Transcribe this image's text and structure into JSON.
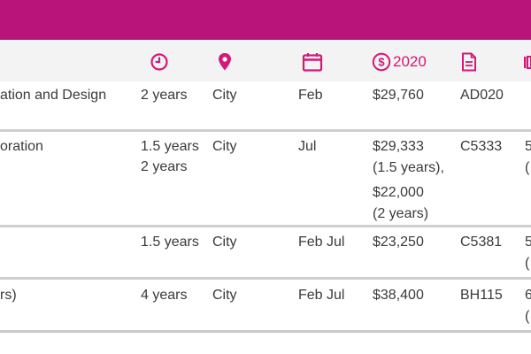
{
  "header": {
    "fees_year": "2020",
    "icons": [
      "clock-icon",
      "location-pin-icon",
      "calendar-icon",
      "dollar-circle-icon",
      "document-icon"
    ]
  },
  "rows": [
    {
      "title": "ation and Design",
      "duration": "2 years",
      "location": "City",
      "intake": "Feb",
      "fees": [
        "$29,760"
      ],
      "code": "AD020",
      "extra": []
    },
    {
      "title": "oration",
      "duration": [
        "1.5 years",
        "2 years"
      ],
      "location": "City",
      "intake": "Jul",
      "fees": [
        "$29,333",
        "(1.5 years),",
        "$22,000",
        "(2 years)"
      ],
      "code": "C5333",
      "extra": [
        "5",
        "("
      ]
    },
    {
      "title": "",
      "duration": "1.5 years",
      "location": "City",
      "intake": "Feb Jul",
      "fees": [
        "$23,250"
      ],
      "code": "C5381",
      "extra": [
        "5",
        "("
      ]
    },
    {
      "title": "rs)",
      "duration": "4 years",
      "location": "City",
      "intake": "Feb Jul",
      "fees": [
        "$38,400"
      ],
      "code": "BH115",
      "extra": [
        "6",
        "("
      ]
    }
  ],
  "colors": {
    "banner": "#b8147a",
    "accent": "#d41877",
    "header_bg": "#f3f3f3",
    "rule": "#cfcfcf"
  }
}
